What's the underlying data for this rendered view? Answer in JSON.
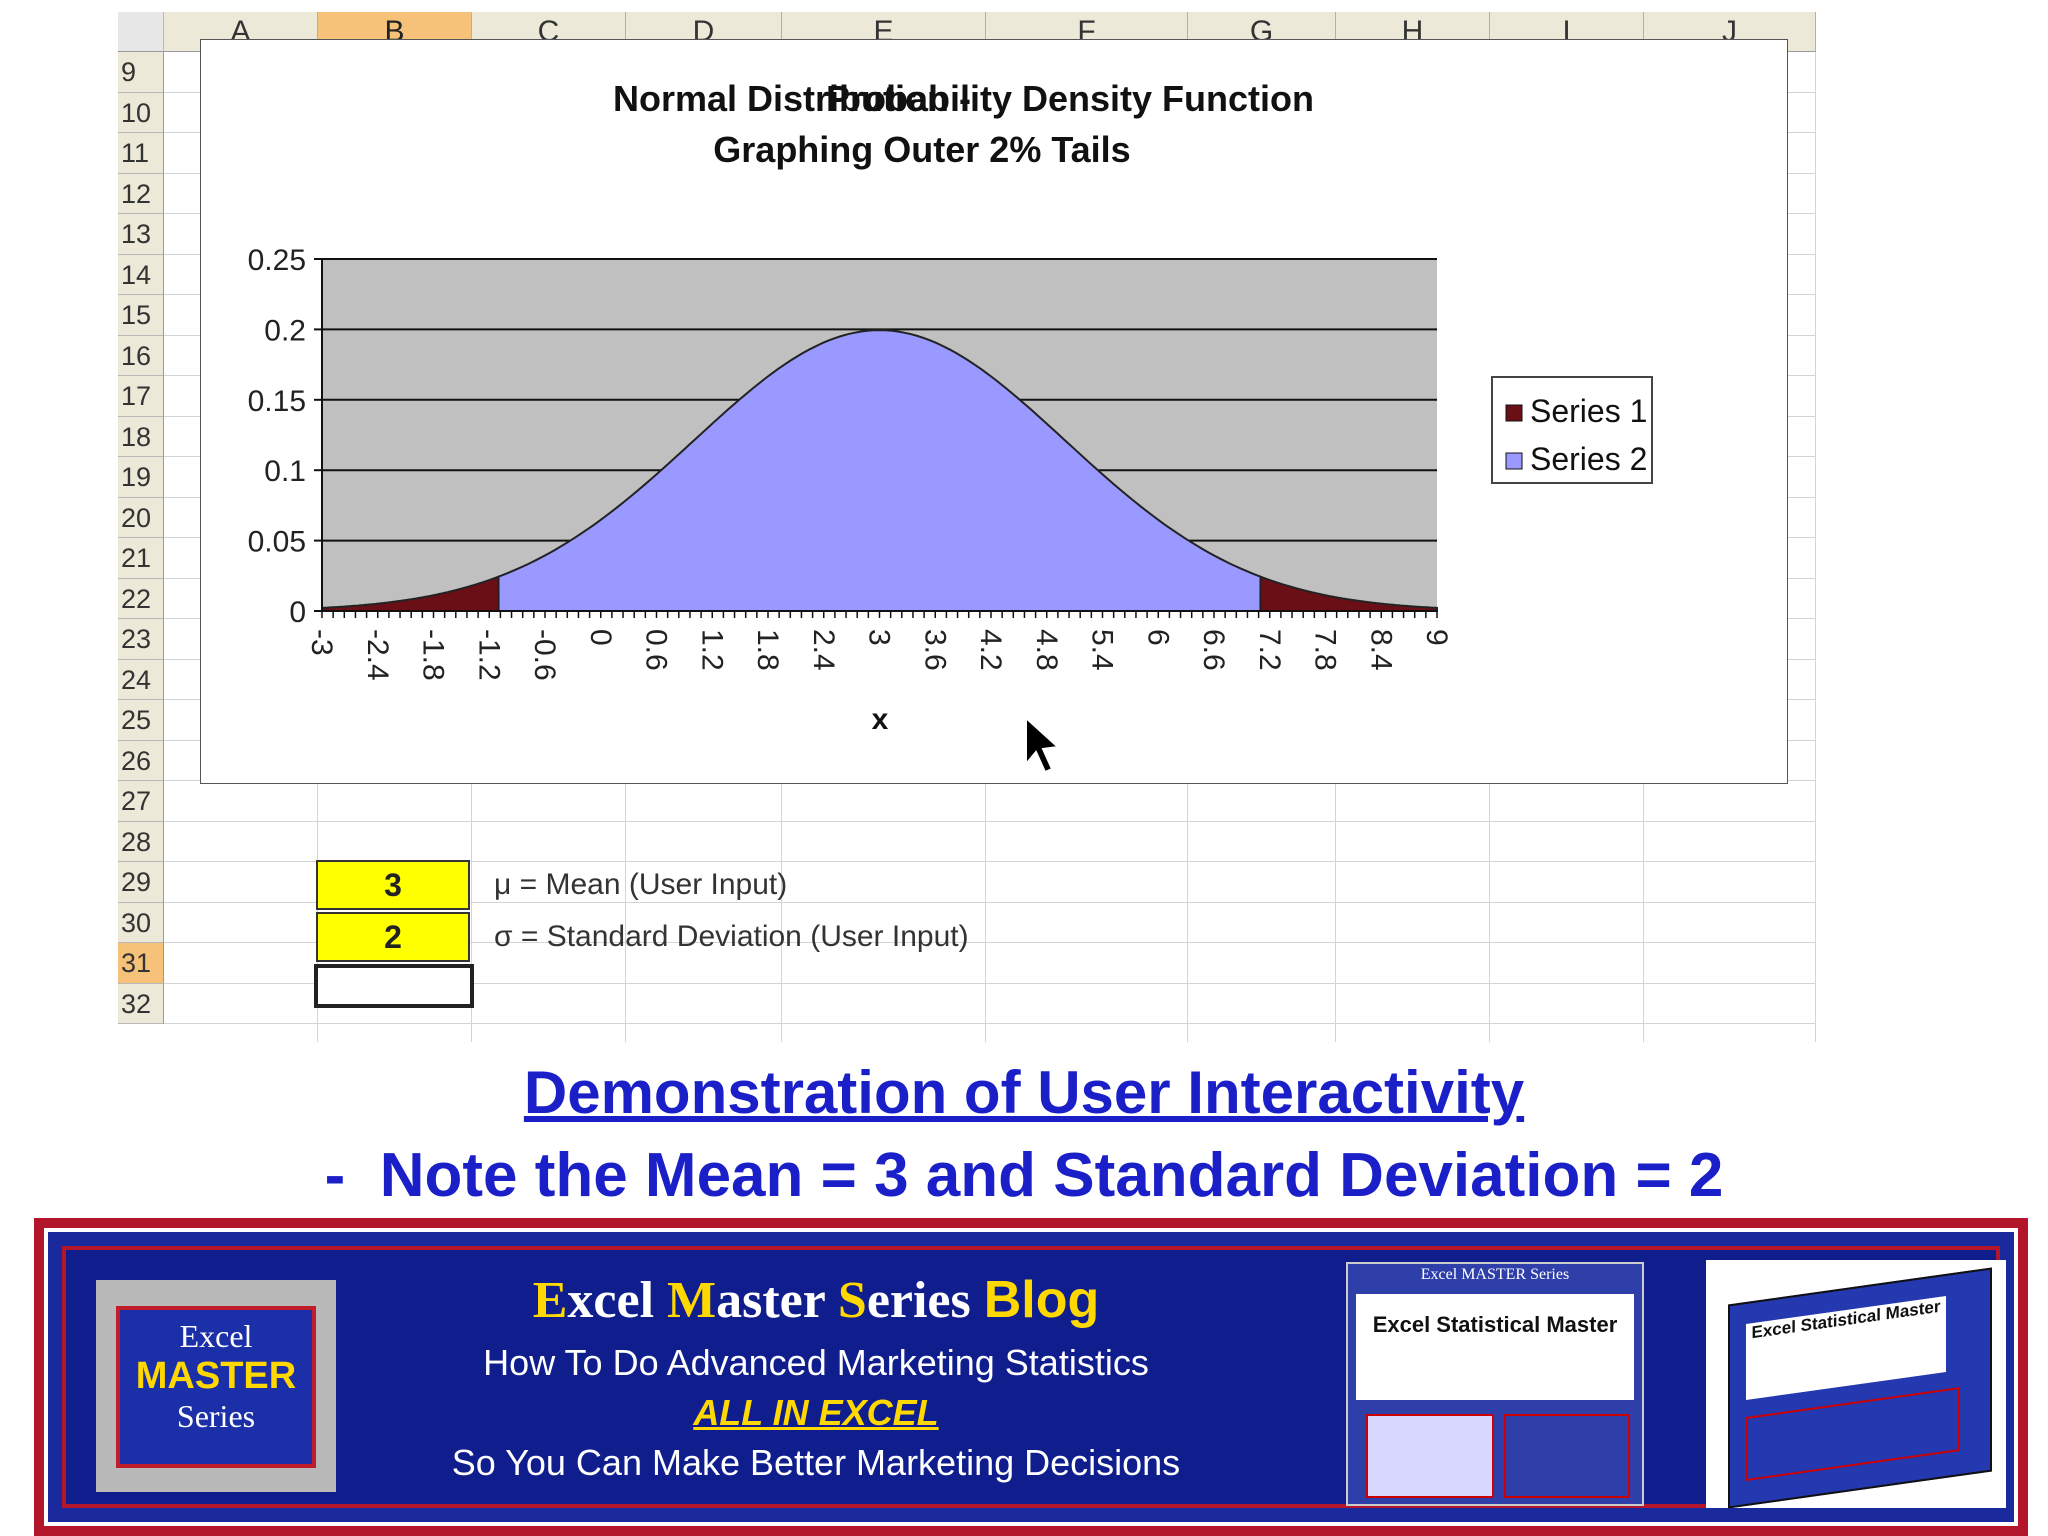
{
  "spreadsheet": {
    "columns": [
      "A",
      "B",
      "C",
      "D",
      "E",
      "F",
      "G",
      "H",
      "I",
      "J"
    ],
    "selected_column": "B",
    "rows": [
      "9",
      "10",
      "11",
      "12",
      "13",
      "14",
      "15",
      "16",
      "17",
      "18",
      "19",
      "20",
      "21",
      "22",
      "23",
      "24",
      "25",
      "26",
      "27",
      "28",
      "29",
      "30",
      "31",
      "32"
    ],
    "selected_row": "31",
    "mean_cell": "3",
    "mean_label": "μ = Mean (User Input)",
    "sd_cell": "2",
    "sd_label": "σ = Standard Deviation (User Input)"
  },
  "chart_data": {
    "type": "area",
    "title_line1_left": "Normal Distribution -",
    "title_line1_right": "Probability Density Function",
    "title_line2": "Graphing Outer 2% Tails",
    "xlabel": "x",
    "ylabel": "",
    "ylim": [
      0,
      0.25
    ],
    "yticks": [
      "0",
      "0.05",
      "0.1",
      "0.15",
      "0.2",
      "0.25"
    ],
    "xticks": [
      "-3",
      "-2.4",
      "-1.8",
      "-1.2",
      "-0.6",
      "0",
      "0.6",
      "1.2",
      "1.8",
      "2.4",
      "3",
      "3.6",
      "4.2",
      "4.8",
      "5.4",
      "6",
      "6.6",
      "7.2",
      "7.8",
      "8.4",
      "9"
    ],
    "mean": 3,
    "sd": 2,
    "x_range": [
      -3,
      9
    ],
    "tail_bounds": [
      -1.1,
      7.1
    ],
    "series": [
      {
        "name": "Series 1",
        "color": "#6b0f16",
        "role": "outer tails"
      },
      {
        "name": "Series 2",
        "color": "#9999ff",
        "role": "center"
      }
    ],
    "plot_bg": "#c0c0c0",
    "grid": true,
    "legend": "right"
  },
  "captions": {
    "line1": "Demonstration of User Interactivity ",
    "line2": "-  Note the Mean = 3 and Standard Deviation = 2"
  },
  "banner": {
    "logo_l1": "Excel",
    "logo_l2": "MASTER",
    "logo_l3": "Series",
    "title_e": "E",
    "title_xcel": "xcel ",
    "title_m": "M",
    "title_aster": "aster ",
    "title_s": "S",
    "title_eries": "eries ",
    "title_blog": "Blog",
    "line1": "How To Do Advanced Marketing Statistics",
    "line2": "ALL IN EXCEL",
    "line3": "So You Can Make Better Marketing Decisions",
    "book1_header": "Excel MASTER Series",
    "book1_title": "Excel Statistical Master",
    "book2_title": "Excel Statistical Master",
    "colors": {
      "red": "#b3162a",
      "blue": "#0f1e8c",
      "yellow": "#ffd800"
    }
  }
}
